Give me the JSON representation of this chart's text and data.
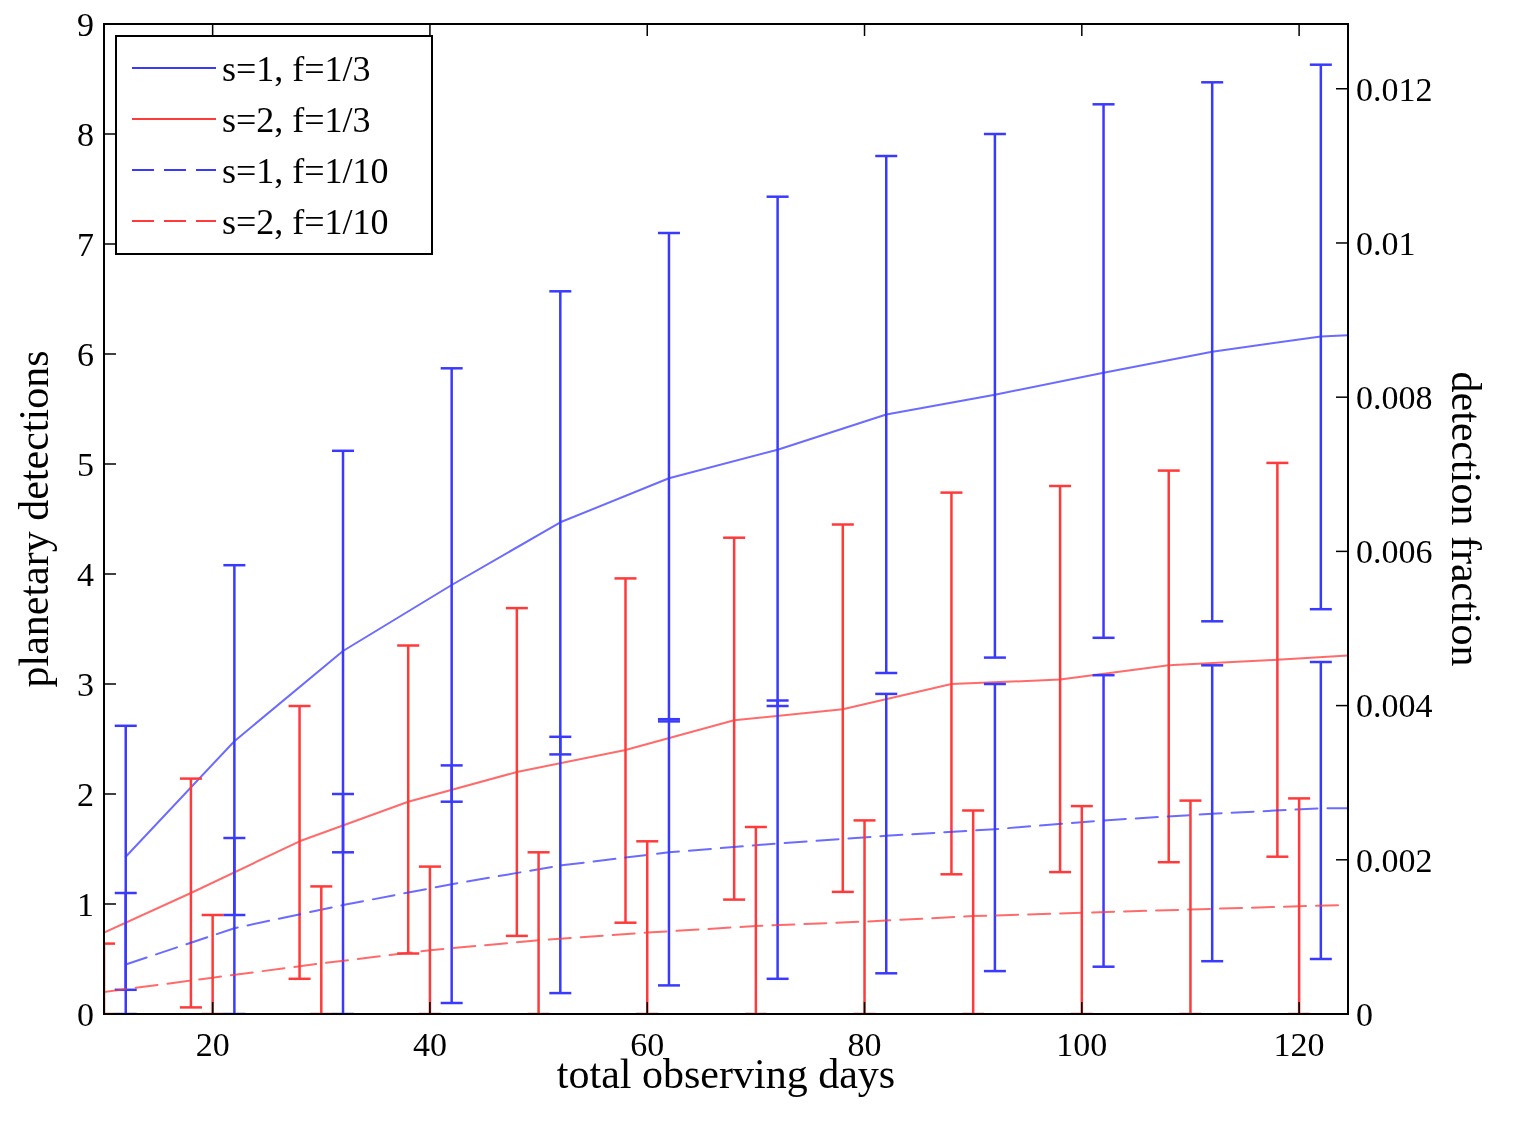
{
  "chart_data": {
    "type": "line",
    "xlabel": "total observing days",
    "ylabel": "planetary detections",
    "y2label": "detection fraction",
    "xlim": [
      10,
      124.5
    ],
    "xticks": [
      20,
      40,
      60,
      80,
      100,
      120
    ],
    "ylim": [
      0,
      9
    ],
    "yticks": [
      0,
      1,
      2,
      3,
      4,
      5,
      6,
      7,
      8,
      9
    ],
    "y2lim": [
      0,
      0.01284
    ],
    "y2ticks": [
      0,
      0.002,
      0.004,
      0.006,
      0.008,
      0.01,
      0.012
    ],
    "legend": "top left",
    "series": [
      {
        "name": "s=1, f=1/3",
        "color": "#3a3aff",
        "line_style": "solid",
        "x": [
          12,
          22,
          32,
          42,
          52,
          62,
          72,
          82,
          92,
          102,
          112,
          122,
          124.5
        ],
        "values": [
          1.43,
          2.48,
          3.3,
          3.9,
          4.47,
          4.87,
          5.13,
          5.45,
          5.63,
          5.83,
          6.02,
          6.16,
          6.17
        ],
        "errors": [
          [
            0.22,
            2.62
          ],
          [
            0.9,
            4.08
          ],
          [
            1.47,
            5.12
          ],
          [
            1.93,
            5.87
          ],
          [
            2.36,
            6.57
          ],
          [
            2.66,
            7.1
          ],
          [
            2.8,
            7.43
          ],
          [
            3.1,
            7.8
          ],
          [
            3.24,
            8.0
          ],
          [
            3.42,
            8.27
          ],
          [
            3.57,
            8.47
          ],
          [
            3.68,
            8.63
          ],
          null
        ]
      },
      {
        "name": "s=2, f=1/3",
        "color": "#ff3a3a",
        "line_style": "solid",
        "x": [
          10,
          18,
          28,
          38,
          48,
          58,
          68,
          78,
          88,
          98,
          108,
          118,
          124.5
        ],
        "values": [
          0.74,
          1.1,
          1.57,
          1.93,
          2.2,
          2.4,
          2.67,
          2.77,
          3.0,
          3.04,
          3.17,
          3.22,
          3.26
        ],
        "errors": [
          null,
          [
            0.06,
            2.14
          ],
          [
            0.32,
            2.8
          ],
          [
            0.55,
            3.35
          ],
          [
            0.71,
            3.69
          ],
          [
            0.83,
            3.96
          ],
          [
            1.04,
            4.33
          ],
          [
            1.11,
            4.45
          ],
          [
            1.27,
            4.74
          ],
          [
            1.29,
            4.8
          ],
          [
            1.38,
            4.94
          ],
          [
            1.43,
            5.01
          ],
          null
        ]
      },
      {
        "name": "s=1, f=1/10",
        "color": "#3a3aff",
        "line_style": "dashed",
        "x": [
          12,
          22,
          32,
          42,
          52,
          62,
          72,
          82,
          92,
          102,
          112,
          122,
          124.5
        ],
        "values": [
          0.45,
          0.78,
          0.99,
          1.18,
          1.35,
          1.47,
          1.55,
          1.62,
          1.68,
          1.76,
          1.82,
          1.87,
          1.87
        ],
        "errors": [
          [
            0,
            1.1
          ],
          [
            0,
            1.6
          ],
          [
            0,
            2.0
          ],
          [
            0.1,
            2.26
          ],
          [
            0.19,
            2.52
          ],
          [
            0.26,
            2.68
          ],
          [
            0.32,
            2.85
          ],
          [
            0.37,
            2.91
          ],
          [
            0.39,
            3.0
          ],
          [
            0.43,
            3.08
          ],
          [
            0.48,
            3.17
          ],
          [
            0.5,
            3.2
          ],
          null
        ]
      },
      {
        "name": "s=2, f=1/10",
        "color": "#ff3a3a",
        "line_style": "dashed",
        "x": [
          10,
          20,
          30,
          40,
          50,
          60,
          70,
          80,
          90,
          100,
          110,
          120,
          124.5
        ],
        "values": [
          0.2,
          0.33,
          0.46,
          0.58,
          0.67,
          0.74,
          0.8,
          0.84,
          0.89,
          0.92,
          0.95,
          0.98,
          0.99
        ],
        "errors": [
          [
            0,
            0.64
          ],
          [
            0,
            0.9
          ],
          [
            0,
            1.16
          ],
          [
            0,
            1.34
          ],
          [
            0,
            1.47
          ],
          [
            0,
            1.57
          ],
          [
            0,
            1.7
          ],
          [
            0,
            1.76
          ],
          [
            0,
            1.85
          ],
          [
            0,
            1.89
          ],
          [
            0,
            1.94
          ],
          [
            0,
            1.96
          ],
          null
        ]
      }
    ]
  }
}
